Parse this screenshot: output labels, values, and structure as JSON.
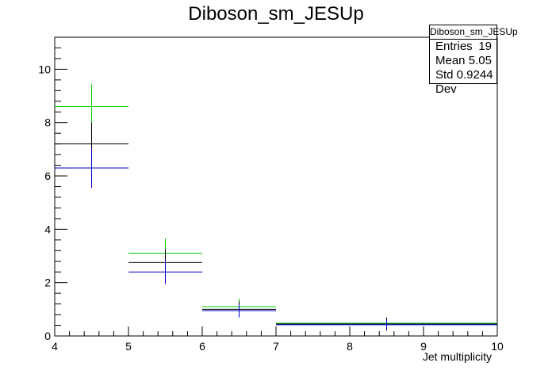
{
  "chart_data": {
    "type": "scatter",
    "title": "Diboson_sm_JESUp",
    "xlabel": "Jet multiplicity",
    "ylabel": "",
    "xlim": [
      4,
      10
    ],
    "ylim": [
      0,
      11.2
    ],
    "x_ticks": [
      4,
      5,
      6,
      7,
      8,
      9,
      10
    ],
    "y_ticks": [
      0,
      2,
      4,
      6,
      8,
      10
    ],
    "x_tick_labels": [
      "4",
      "5",
      "6",
      "7",
      "8",
      "9",
      "10"
    ],
    "y_tick_labels": [
      "0",
      "2",
      "4",
      "6",
      "8",
      "10"
    ],
    "grid": false,
    "series": [
      {
        "color": "#00cc00",
        "points": [
          {
            "xlow": 4,
            "xhigh": 5,
            "y": 8.6
          },
          {
            "xlow": 5,
            "xhigh": 6,
            "y": 3.1
          },
          {
            "xlow": 6,
            "xhigh": 7,
            "y": 1.1
          },
          {
            "xlow": 7,
            "xhigh": 10,
            "y": 0.48
          }
        ]
      },
      {
        "color": "#000000",
        "points": [
          {
            "xlow": 4,
            "xhigh": 5,
            "y": 7.2,
            "yerr": 0.8
          },
          {
            "xlow": 5,
            "xhigh": 6,
            "y": 2.75,
            "yerr": 0.5
          },
          {
            "xlow": 6,
            "xhigh": 7,
            "y": 1.0,
            "yerr": 0.3
          },
          {
            "xlow": 7,
            "xhigh": 10,
            "y": 0.45,
            "yerr": 0.25
          }
        ]
      },
      {
        "color": "#0000cc",
        "points": [
          {
            "xlow": 4,
            "xhigh": 5,
            "y": 6.3
          },
          {
            "xlow": 5,
            "xhigh": 6,
            "y": 2.4
          },
          {
            "xlow": 6,
            "xhigh": 7,
            "y": 0.95
          },
          {
            "xlow": 7,
            "xhigh": 10,
            "y": 0.42
          }
        ]
      }
    ],
    "green_yerr": [
      0.85,
      0.55,
      0.3,
      0.2
    ],
    "blue_yerr": [
      0.75,
      0.45,
      0.25,
      0.2
    ]
  },
  "stats_box": {
    "name": "Diboson_sm_JESUp",
    "rows": [
      {
        "label": "Entries",
        "value": "19"
      },
      {
        "label": "Mean",
        "value": "5.05"
      },
      {
        "label": "Std Dev",
        "value": "0.9244"
      }
    ]
  }
}
